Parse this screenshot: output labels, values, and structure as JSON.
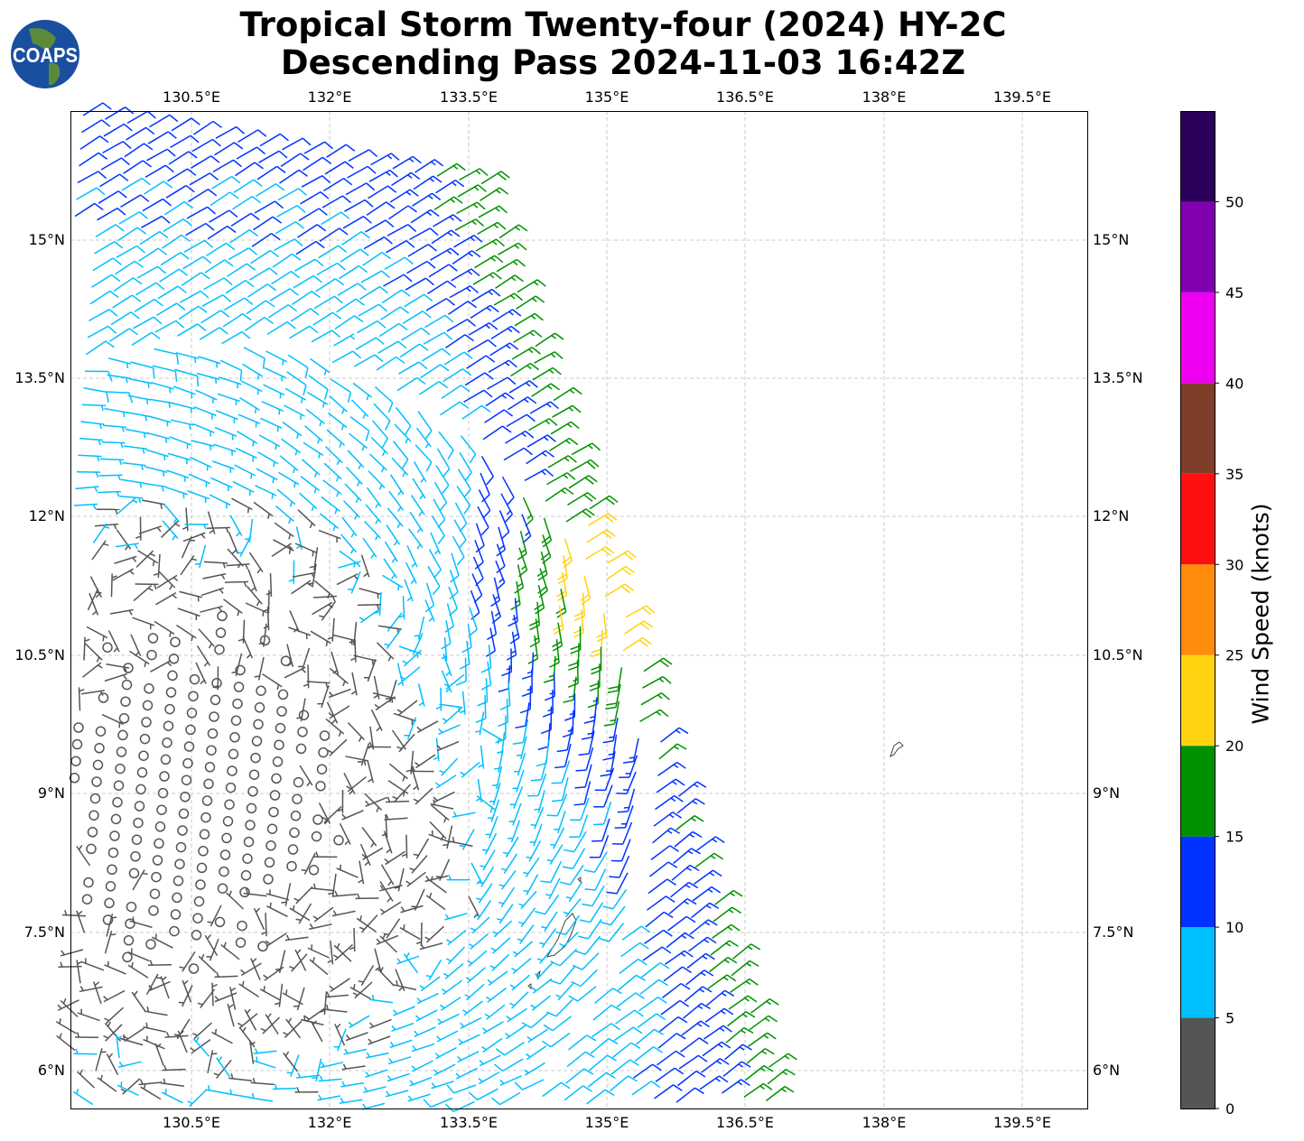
{
  "title": {
    "line1": "Tropical Storm Twenty-four (2024) HY-2C",
    "line2": "Descending Pass 2024-11-03 16:42Z"
  },
  "logo": {
    "text": "COAPS"
  },
  "lon_ticks": [
    "130.5°E",
    "132°E",
    "133.5°E",
    "135°E",
    "136.5°E",
    "138°E",
    "139.5°E"
  ],
  "lat_ticks": [
    "15°N",
    "13.5°N",
    "12°N",
    "10.5°N",
    "9°N",
    "7.5°N",
    "6°N"
  ],
  "colorbar": {
    "label": "Wind Speed (knots)",
    "ticks": [
      "0",
      "5",
      "10",
      "15",
      "20",
      "25",
      "30",
      "35",
      "40",
      "45",
      "50"
    ],
    "range": [
      0,
      55
    ],
    "colors": [
      "#555555",
      "#00bfff",
      "#0033ff",
      "#009100",
      "#ffd30f",
      "#ff8c0d",
      "#ff1010",
      "#7f3e2a",
      "#f000f0",
      "#8000b0",
      "#2b005a"
    ]
  }
}
